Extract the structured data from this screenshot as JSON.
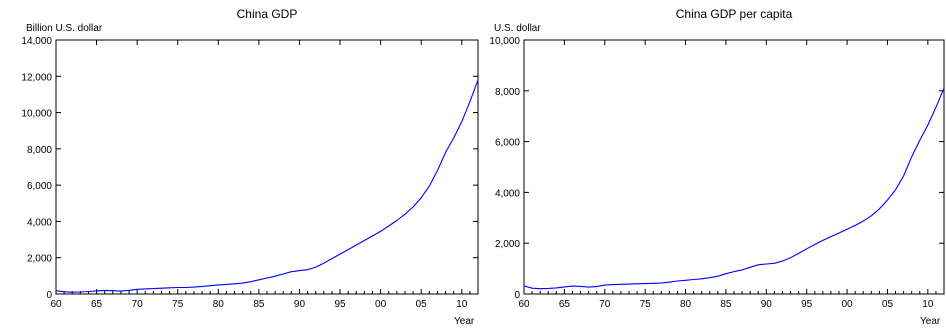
{
  "chart_data": [
    {
      "type": "line",
      "title": "China GDP",
      "ylabel": "Billion U.S. dollar",
      "xlabel": "Year",
      "xlim": [
        1960,
        2012
      ],
      "ylim": [
        0,
        14000
      ],
      "y_ticks": [
        0,
        2000,
        4000,
        6000,
        8000,
        10000,
        12000,
        14000
      ],
      "y_tick_labels": [
        "0",
        "2,000",
        "4,000",
        "6,000",
        "8,000",
        "10,000",
        "12,000",
        "14,000"
      ],
      "x_ticks": [
        1960,
        1965,
        1970,
        1975,
        1980,
        1985,
        1990,
        1995,
        2000,
        2005,
        2010
      ],
      "x_tick_labels": [
        "60",
        "65",
        "70",
        "75",
        "80",
        "85",
        "90",
        "95",
        "00",
        "05",
        "10"
      ],
      "grid": false,
      "line_color": "#0000ff",
      "series": [
        {
          "x": [
            1960,
            1961,
            1962,
            1963,
            1964,
            1965,
            1966,
            1967,
            1968,
            1969,
            1970,
            1971,
            1972,
            1973,
            1974,
            1975,
            1976,
            1977,
            1978,
            1979,
            1980,
            1981,
            1982,
            1983,
            1984,
            1985,
            1986,
            1987,
            1988,
            1989,
            1990,
            1991,
            1992,
            1993,
            1994,
            1995,
            1996,
            1997,
            1998,
            1999,
            2000,
            2001,
            2002,
            2003,
            2004,
            2005,
            2006,
            2007,
            2008,
            2009,
            2010,
            2011,
            2012
          ],
          "y": [
            180,
            120,
            100,
            110,
            140,
            170,
            200,
            180,
            160,
            200,
            260,
            280,
            300,
            320,
            340,
            360,
            360,
            380,
            420,
            460,
            500,
            530,
            560,
            600,
            680,
            780,
            880,
            980,
            1100,
            1230,
            1290,
            1340,
            1480,
            1700,
            1950,
            2200,
            2450,
            2700,
            2950,
            3200,
            3450,
            3750,
            4050,
            4400,
            4800,
            5300,
            5950,
            6800,
            7800,
            8600,
            9500,
            10600,
            11800
          ]
        }
      ]
    },
    {
      "type": "line",
      "title": "China GDP per capita",
      "ylabel": "U.S. dollar",
      "xlabel": "Year",
      "xlim": [
        1960,
        2012
      ],
      "ylim": [
        0,
        10000
      ],
      "y_ticks": [
        0,
        2000,
        4000,
        6000,
        8000,
        10000
      ],
      "y_tick_labels": [
        "0",
        "2,000",
        "4,000",
        "6,000",
        "8,000",
        "10,000"
      ],
      "x_ticks": [
        1960,
        1965,
        1970,
        1975,
        1980,
        1985,
        1990,
        1995,
        2000,
        2005,
        2010
      ],
      "x_tick_labels": [
        "60",
        "65",
        "70",
        "75",
        "80",
        "85",
        "90",
        "95",
        "00",
        "05",
        "10"
      ],
      "grid": false,
      "line_color": "#0000ff",
      "series": [
        {
          "x": [
            1960,
            1961,
            1962,
            1963,
            1964,
            1965,
            1966,
            1967,
            1968,
            1969,
            1970,
            1971,
            1972,
            1973,
            1974,
            1975,
            1976,
            1977,
            1978,
            1979,
            1980,
            1981,
            1982,
            1983,
            1984,
            1985,
            1986,
            1987,
            1988,
            1989,
            1990,
            1991,
            1992,
            1993,
            1994,
            1995,
            1996,
            1997,
            1998,
            1999,
            2000,
            2001,
            2002,
            2003,
            2004,
            2005,
            2006,
            2007,
            2008,
            2009,
            2010,
            2011,
            2012
          ],
          "y": [
            320,
            230,
            210,
            220,
            240,
            280,
            310,
            300,
            270,
            290,
            350,
            370,
            380,
            390,
            400,
            410,
            420,
            430,
            470,
            510,
            540,
            570,
            600,
            640,
            700,
            800,
            880,
            950,
            1050,
            1150,
            1180,
            1210,
            1300,
            1430,
            1600,
            1780,
            1950,
            2110,
            2260,
            2400,
            2550,
            2700,
            2870,
            3080,
            3350,
            3700,
            4100,
            4650,
            5400,
            6050,
            6650,
            7350,
            8100
          ]
        }
      ]
    }
  ]
}
